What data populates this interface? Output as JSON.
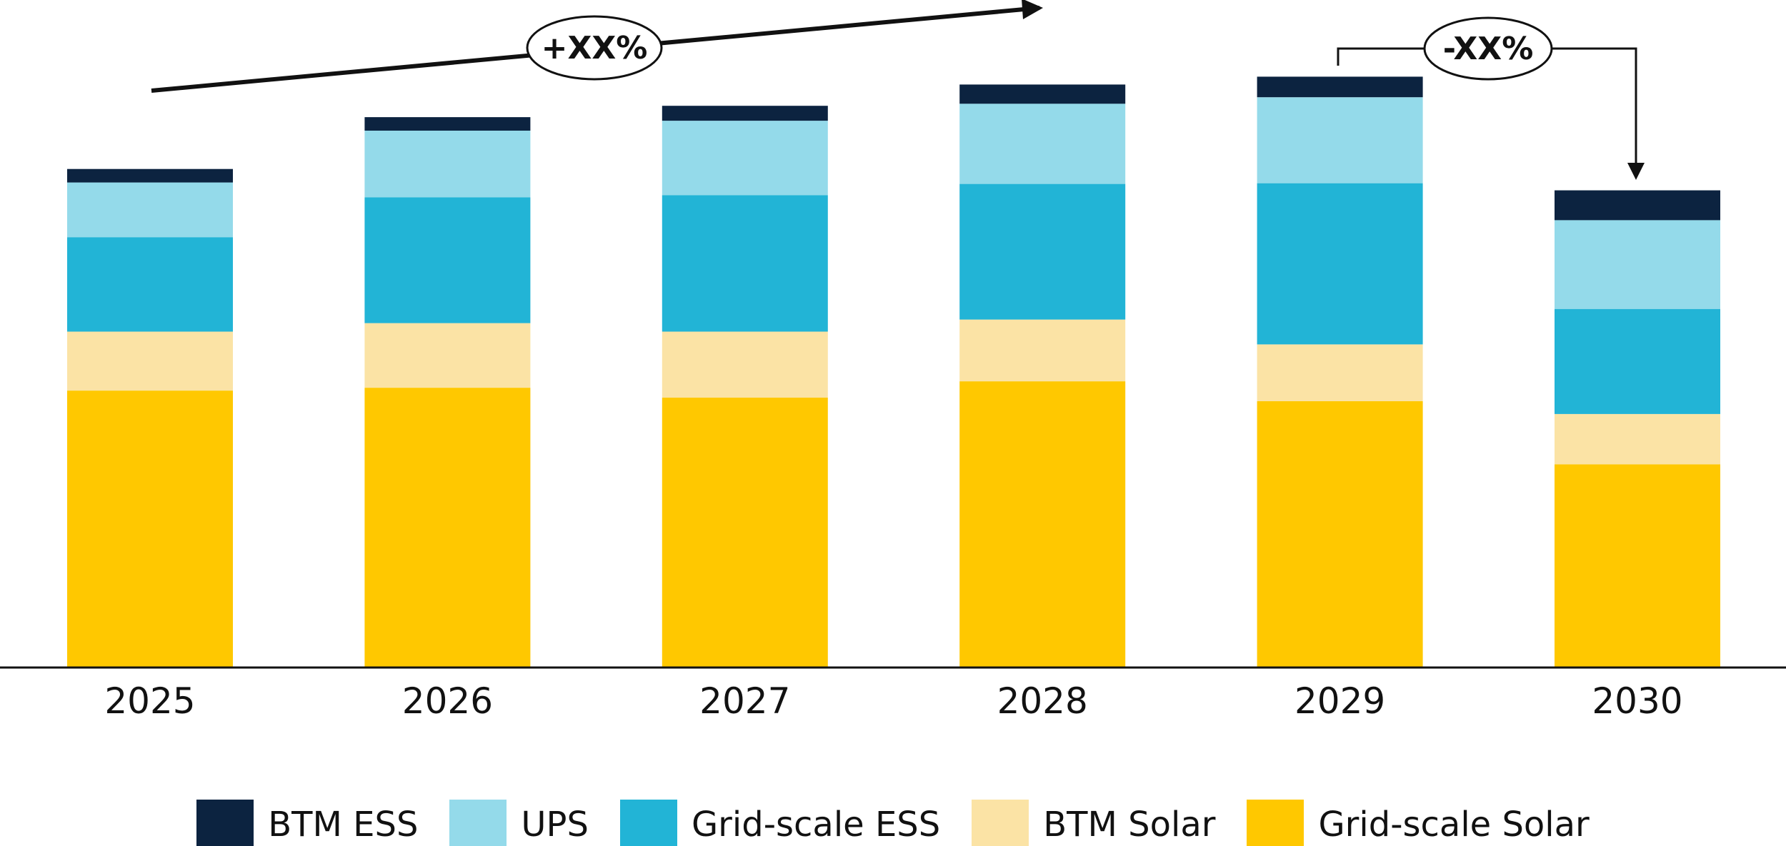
{
  "chart_data": {
    "type": "bar",
    "stacked": true,
    "categories": [
      "2025",
      "2026",
      "2027",
      "2028",
      "2029",
      "2030"
    ],
    "series": [
      {
        "name": "Grid-scale Solar",
        "color": "#FFC800",
        "values": [
          390,
          394,
          380,
          403,
          375,
          286
        ]
      },
      {
        "name": "BTM Solar",
        "color": "#FBE3A5",
        "values": [
          83,
          91,
          93,
          87,
          80,
          71
        ]
      },
      {
        "name": "Grid-scale ESS",
        "color": "#22B4D6",
        "values": [
          133,
          177,
          192,
          191,
          227,
          148
        ]
      },
      {
        "name": "UPS",
        "color": "#94DAEA",
        "values": [
          77,
          94,
          105,
          113,
          121,
          125
        ]
      },
      {
        "name": "BTM ESS",
        "color": "#0C2340",
        "values": [
          19,
          19,
          21,
          27,
          29,
          42
        ]
      }
    ],
    "ylim": [
      0,
      940
    ],
    "xlabel": "",
    "ylabel": "",
    "annotations": [
      {
        "text": "+XX%",
        "type": "growth-arrow",
        "from": "2025",
        "to": "2028"
      },
      {
        "text": "-XX%",
        "type": "bracket-arrow",
        "from": "2029",
        "to": "2030"
      }
    ],
    "legend_position": "bottom"
  }
}
